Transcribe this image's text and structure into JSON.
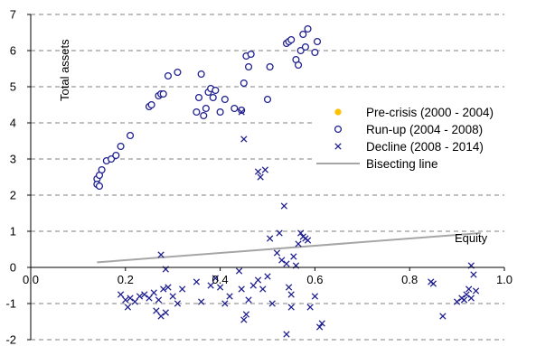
{
  "chart_data": {
    "type": "scatter",
    "ylabel": "Total assets",
    "xlabel": "Equity",
    "xlim": [
      0,
      1.0
    ],
    "ylim": [
      -2,
      7
    ],
    "x_ticks": [
      "0.0",
      "0.2",
      "0.4",
      "0.6",
      "0.8",
      "1.0"
    ],
    "y_ticks": [
      "-2",
      "-1",
      "0",
      "1",
      "2",
      "3",
      "4",
      "5",
      "6",
      "7"
    ],
    "grid": "horizontal-dashed",
    "legend_position": "right",
    "colors": {
      "pre_crisis": "#FFC000",
      "run_up": "#1F1F8F",
      "decline": "#1F1F8F",
      "bisecting": "#A6A6A6",
      "axis": "#000000",
      "grid": "#7F7F7F"
    },
    "series": [
      {
        "name": "Pre-crisis (2000 - 2004)",
        "marker": "filled-circle",
        "points": []
      },
      {
        "name": "Run-up (2004 - 2008)",
        "marker": "open-circle",
        "points": [
          [
            0.14,
            2.45
          ],
          [
            0.14,
            2.3
          ],
          [
            0.145,
            2.25
          ],
          [
            0.145,
            2.55
          ],
          [
            0.15,
            2.7
          ],
          [
            0.16,
            2.95
          ],
          [
            0.17,
            3.0
          ],
          [
            0.18,
            3.1
          ],
          [
            0.19,
            3.35
          ],
          [
            0.21,
            3.65
          ],
          [
            0.25,
            4.45
          ],
          [
            0.255,
            4.5
          ],
          [
            0.27,
            4.75
          ],
          [
            0.275,
            4.8
          ],
          [
            0.28,
            4.8
          ],
          [
            0.29,
            5.3
          ],
          [
            0.31,
            5.4
          ],
          [
            0.35,
            4.3
          ],
          [
            0.355,
            4.7
          ],
          [
            0.36,
            5.35
          ],
          [
            0.365,
            4.2
          ],
          [
            0.37,
            4.4
          ],
          [
            0.375,
            4.85
          ],
          [
            0.38,
            4.95
          ],
          [
            0.385,
            4.7
          ],
          [
            0.39,
            4.9
          ],
          [
            0.4,
            4.3
          ],
          [
            0.41,
            4.65
          ],
          [
            0.43,
            4.4
          ],
          [
            0.445,
            4.35
          ],
          [
            0.45,
            5.1
          ],
          [
            0.455,
            5.85
          ],
          [
            0.46,
            5.55
          ],
          [
            0.465,
            5.9
          ],
          [
            0.5,
            4.65
          ],
          [
            0.505,
            5.55
          ],
          [
            0.54,
            6.2
          ],
          [
            0.545,
            6.25
          ],
          [
            0.55,
            6.3
          ],
          [
            0.56,
            5.75
          ],
          [
            0.565,
            5.6
          ],
          [
            0.57,
            6.0
          ],
          [
            0.575,
            6.45
          ],
          [
            0.58,
            6.1
          ],
          [
            0.585,
            6.6
          ],
          [
            0.6,
            5.95
          ],
          [
            0.605,
            6.25
          ]
        ]
      },
      {
        "name": "Decline (2008 - 2014)",
        "marker": "x",
        "points": [
          [
            0.19,
            -0.75
          ],
          [
            0.2,
            -0.9
          ],
          [
            0.205,
            -1.1
          ],
          [
            0.21,
            -0.85
          ],
          [
            0.22,
            -0.95
          ],
          [
            0.23,
            -0.8
          ],
          [
            0.24,
            -0.75
          ],
          [
            0.25,
            -0.85
          ],
          [
            0.26,
            -0.7
          ],
          [
            0.265,
            -1.2
          ],
          [
            0.27,
            -0.9
          ],
          [
            0.275,
            -1.35
          ],
          [
            0.28,
            -0.6
          ],
          [
            0.285,
            -1.25
          ],
          [
            0.275,
            0.35
          ],
          [
            0.285,
            -0.05
          ],
          [
            0.29,
            -0.55
          ],
          [
            0.3,
            -0.8
          ],
          [
            0.31,
            -1.0
          ],
          [
            0.32,
            -0.6
          ],
          [
            0.35,
            -0.4
          ],
          [
            0.36,
            -0.95
          ],
          [
            0.38,
            -0.5
          ],
          [
            0.39,
            -0.3
          ],
          [
            0.4,
            -0.55
          ],
          [
            0.41,
            -1.0
          ],
          [
            0.42,
            -0.8
          ],
          [
            0.44,
            -0.1
          ],
          [
            0.445,
            -0.6
          ],
          [
            0.45,
            -1.45
          ],
          [
            0.455,
            -1.3
          ],
          [
            0.46,
            -0.9
          ],
          [
            0.445,
            4.3
          ],
          [
            0.45,
            3.55
          ],
          [
            0.48,
            2.65
          ],
          [
            0.485,
            2.5
          ],
          [
            0.495,
            2.7
          ],
          [
            0.47,
            -0.5
          ],
          [
            0.48,
            -0.35
          ],
          [
            0.49,
            -0.6
          ],
          [
            0.5,
            -0.25
          ],
          [
            0.505,
            0.8
          ],
          [
            0.51,
            -1.0
          ],
          [
            0.52,
            0.4
          ],
          [
            0.525,
            0.95
          ],
          [
            0.53,
            0.2
          ],
          [
            0.535,
            1.7
          ],
          [
            0.54,
            0.1
          ],
          [
            0.545,
            -0.55
          ],
          [
            0.55,
            -0.75
          ],
          [
            0.555,
            0.3
          ],
          [
            0.56,
            0.05
          ],
          [
            0.565,
            0.65
          ],
          [
            0.57,
            0.95
          ],
          [
            0.575,
            0.85
          ],
          [
            0.58,
            0.8
          ],
          [
            0.585,
            0.75
          ],
          [
            0.59,
            -1.1
          ],
          [
            0.6,
            -0.8
          ],
          [
            0.61,
            -1.65
          ],
          [
            0.615,
            -1.55
          ],
          [
            0.54,
            -1.85
          ],
          [
            0.55,
            -1.1
          ],
          [
            0.845,
            -0.4
          ],
          [
            0.85,
            -0.45
          ],
          [
            0.87,
            -1.35
          ],
          [
            0.9,
            -0.95
          ],
          [
            0.91,
            -0.85
          ],
          [
            0.915,
            -0.9
          ],
          [
            0.92,
            -0.75
          ],
          [
            0.925,
            -0.6
          ],
          [
            0.93,
            -0.85
          ],
          [
            0.935,
            -0.2
          ],
          [
            0.94,
            -0.65
          ],
          [
            0.93,
            0.05
          ]
        ]
      },
      {
        "name": "Bisecting line",
        "marker": "line",
        "points": [
          [
            0.14,
            0.14
          ],
          [
            0.95,
            0.95
          ]
        ]
      }
    ]
  }
}
